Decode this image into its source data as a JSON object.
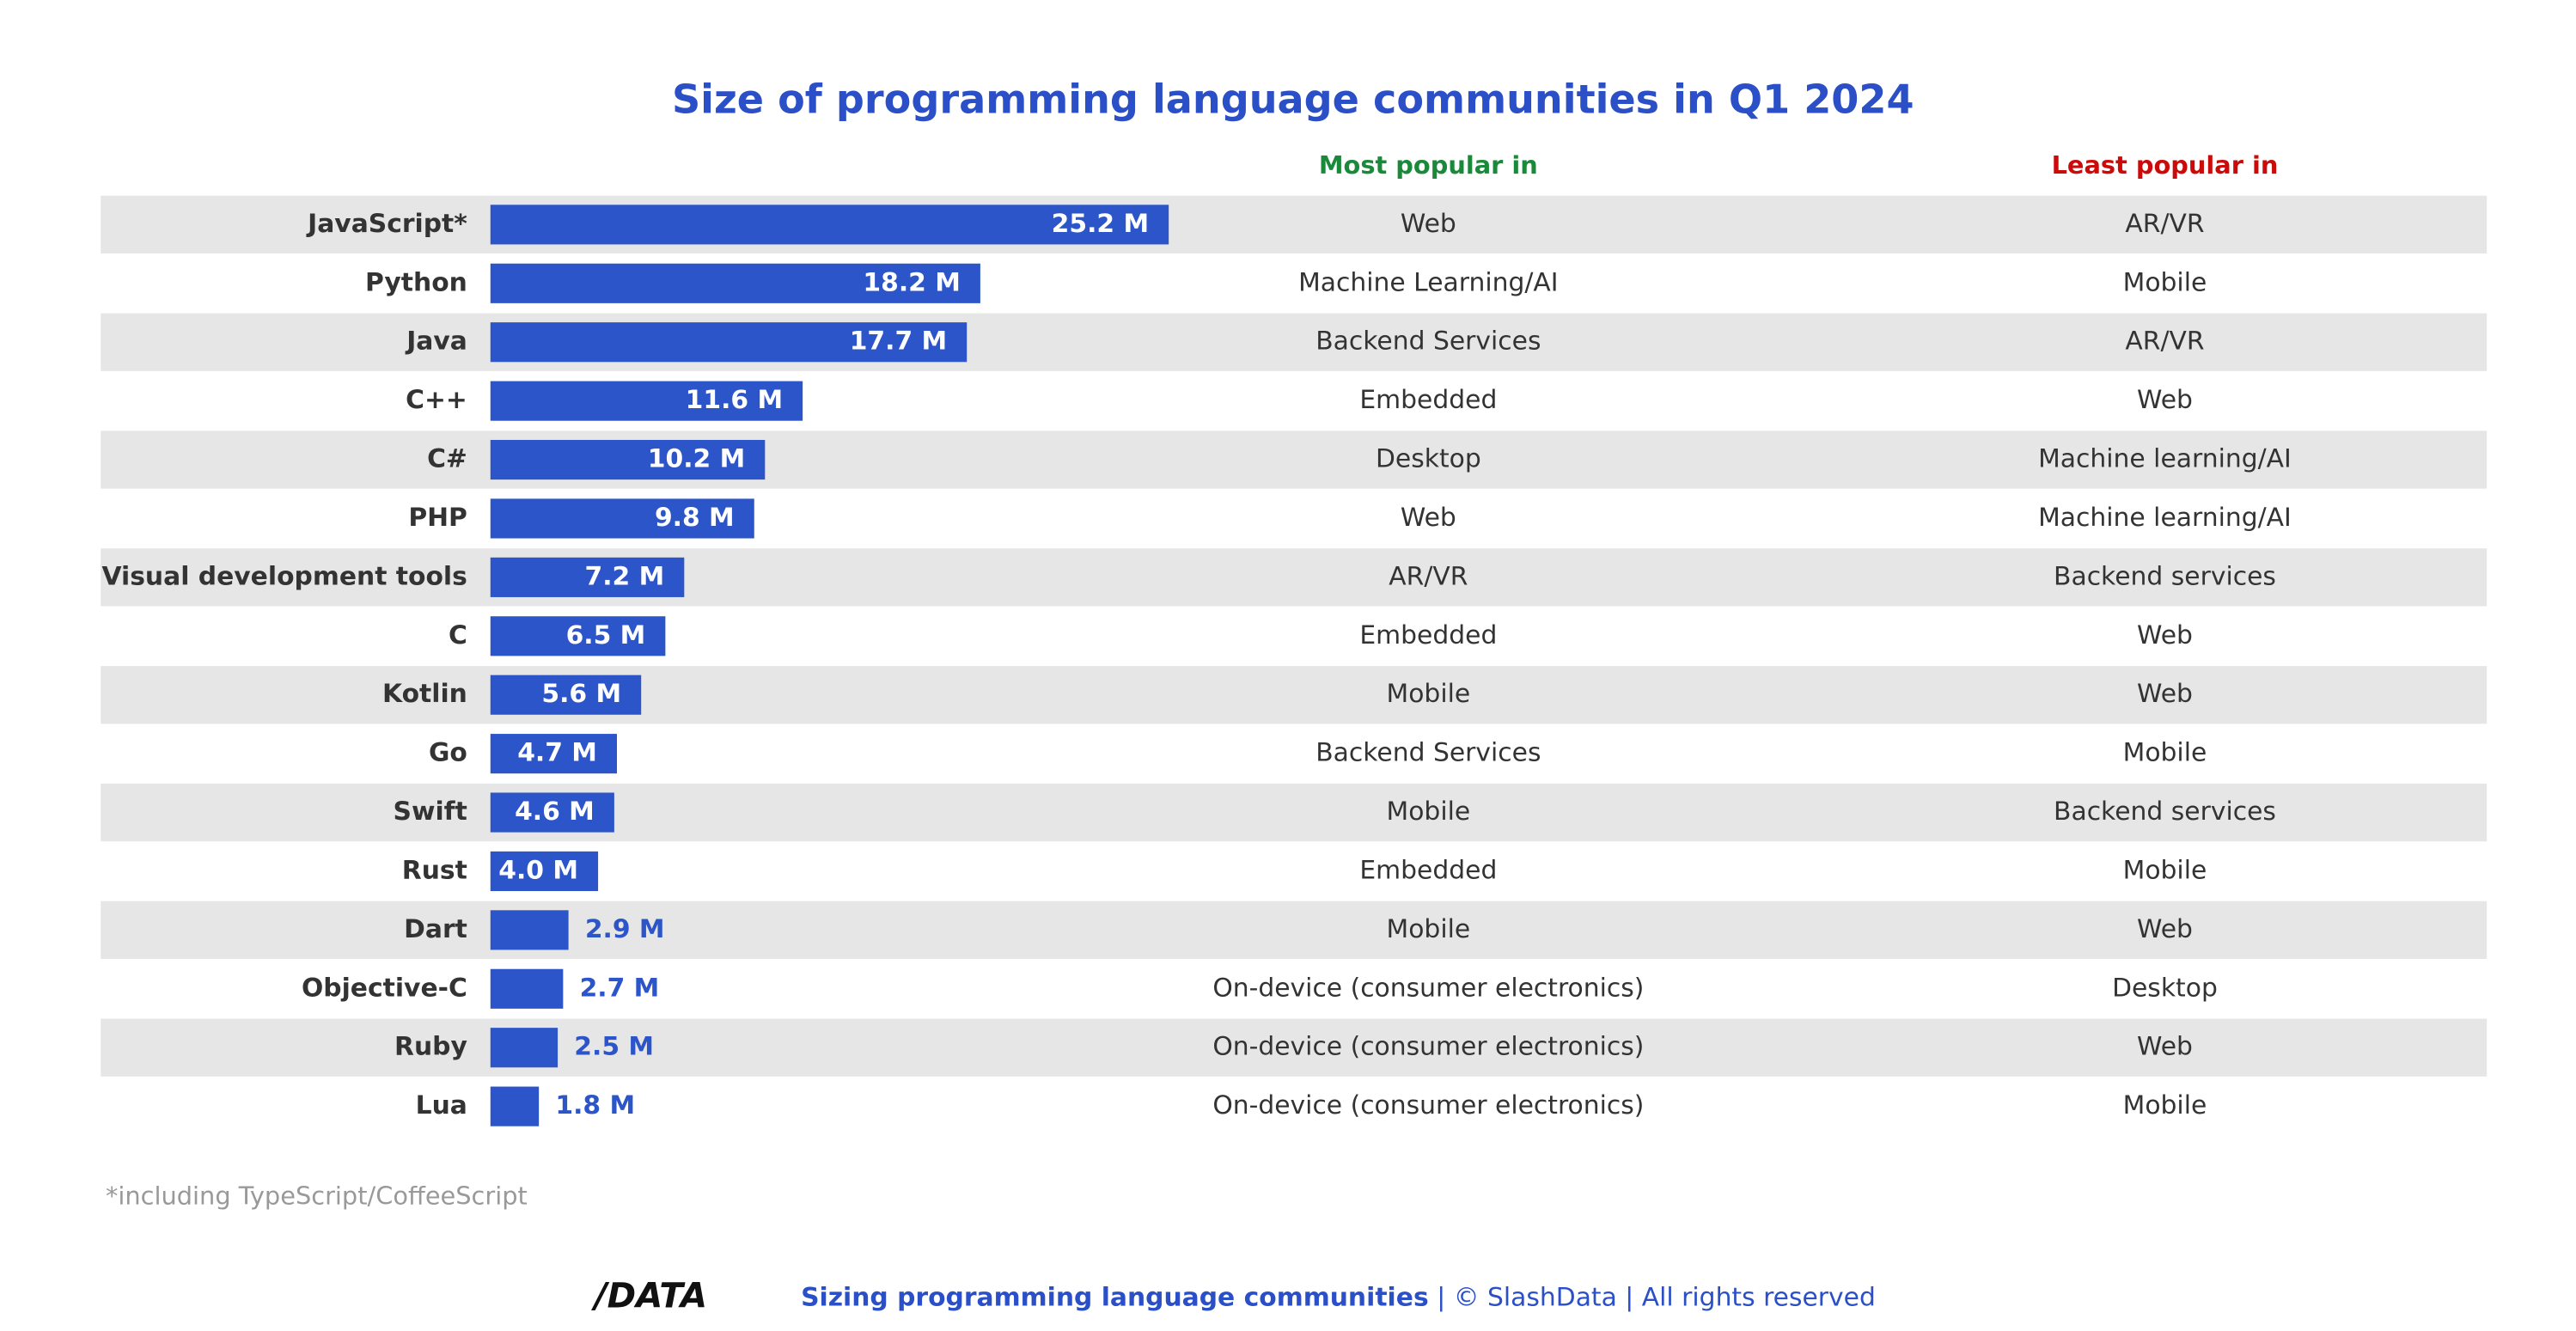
{
  "chart_data": {
    "type": "bar",
    "title": "Size of programming language communities in Q1 2024",
    "categories": [
      "JavaScript*",
      "Python",
      "Java",
      "C++",
      "C#",
      "PHP",
      "Visual development tools",
      "C",
      "Kotlin",
      "Go",
      "Swift",
      "Rust",
      "Dart",
      "Objective-C",
      "Ruby",
      "Lua"
    ],
    "values": [
      25.2,
      18.2,
      17.7,
      11.6,
      10.2,
      9.8,
      7.2,
      6.5,
      5.6,
      4.7,
      4.6,
      4.0,
      2.9,
      2.7,
      2.5,
      1.8
    ],
    "value_labels": [
      "25.2 M",
      "18.2 M",
      "17.7 M",
      "11.6 M",
      "10.2 M",
      "9.8 M",
      "7.2 M",
      "6.5 M",
      "5.6 M",
      "4.7 M",
      "4.6 M",
      "4.0 M",
      "2.9 M",
      "2.7 M",
      "2.5 M",
      "1.8 M"
    ],
    "color": "#2b55c9",
    "most_popular": {
      "header": "Most popular in",
      "values": [
        "Web",
        "Machine Learning/AI",
        "Backend Services",
        "Embedded",
        "Desktop",
        "Web",
        "AR/VR",
        "Embedded",
        "Mobile",
        "Backend Services",
        "Mobile",
        "Embedded",
        "Mobile",
        "On-device (consumer electronics)",
        "On-device (consumer electronics)",
        "On-device (consumer electronics)"
      ]
    },
    "least_popular": {
      "header": "Least popular in",
      "values": [
        "AR/VR",
        "Mobile",
        "AR/VR",
        "Web",
        "Machine learning/AI",
        "Machine learning/AI",
        "Backend services",
        "Web",
        "Web",
        "Mobile",
        "Backend services",
        "Mobile",
        "Web",
        "Desktop",
        "Web",
        "Mobile"
      ]
    },
    "footnote": "*including TypeScript/CoffeeScript",
    "footer": {
      "logo": "/DATA",
      "source": "Sizing programming language communities",
      "rights": "| © SlashData | All rights reserved"
    }
  }
}
